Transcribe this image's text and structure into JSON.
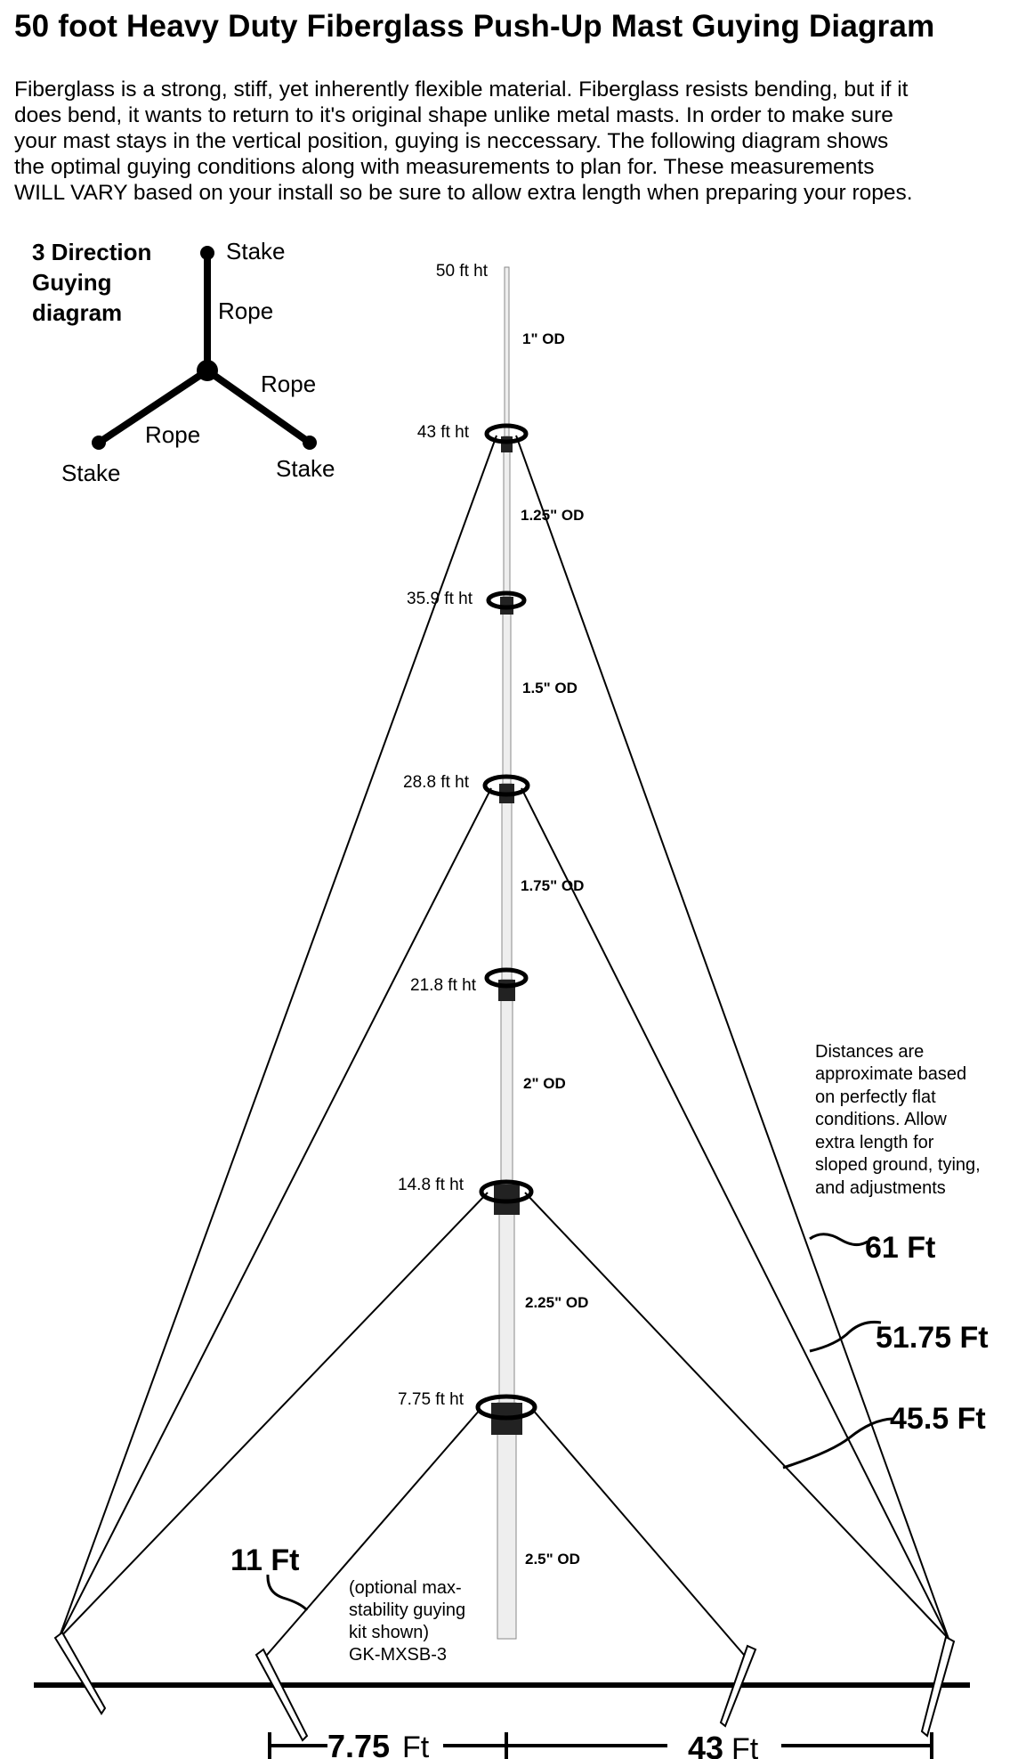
{
  "title": "50 foot Heavy Duty Fiberglass Push-Up Mast Guying Diagram",
  "intro_lines": [
    "Fiberglass is a strong, stiff, yet inherently flexible material. Fiberglass resists bending, but if it",
    "does bend, it wants to return to it's original shape unlike metal masts. In order to make sure",
    "your mast stays in the vertical position, guying is neccessary. The following diagram shows",
    "the optimal guying conditions along with measurements to plan for. These measurements",
    "WILL VARY based on your install so be sure to allow extra length when preparing your ropes."
  ],
  "small_diagram": {
    "title_lines": [
      "3 Direction",
      "Guying",
      "diagram"
    ],
    "stake_label": "Stake",
    "rope_label": "Rope"
  },
  "mast": {
    "top_height": "50 ft ht",
    "heights": [
      "43 ft ht",
      "35.9 ft ht",
      "28.8 ft ht",
      "21.8 ft ht",
      "14.8 ft ht",
      "7.75 ft ht"
    ],
    "diameters": [
      "1\" OD",
      "1.25\" OD",
      "1.5\" OD",
      "1.75\" OD",
      "2\" OD",
      "2.25\" OD",
      "2.5\" OD"
    ]
  },
  "note_lines": [
    "Distances are",
    "approximate based",
    "on perfectly flat",
    "conditions. Allow",
    "extra length for",
    "sloped ground, tying,",
    "and adjustments"
  ],
  "rope_lengths": [
    "61 Ft",
    "51.75 Ft",
    "45.5 Ft",
    "11 Ft"
  ],
  "optional_kit_lines": [
    "(optional max-",
    "stability guying",
    "kit shown)",
    "GK-MXSB-3"
  ],
  "ground_distances": {
    "left_value": "7.75",
    "right_value": "43",
    "unit": "Ft"
  }
}
